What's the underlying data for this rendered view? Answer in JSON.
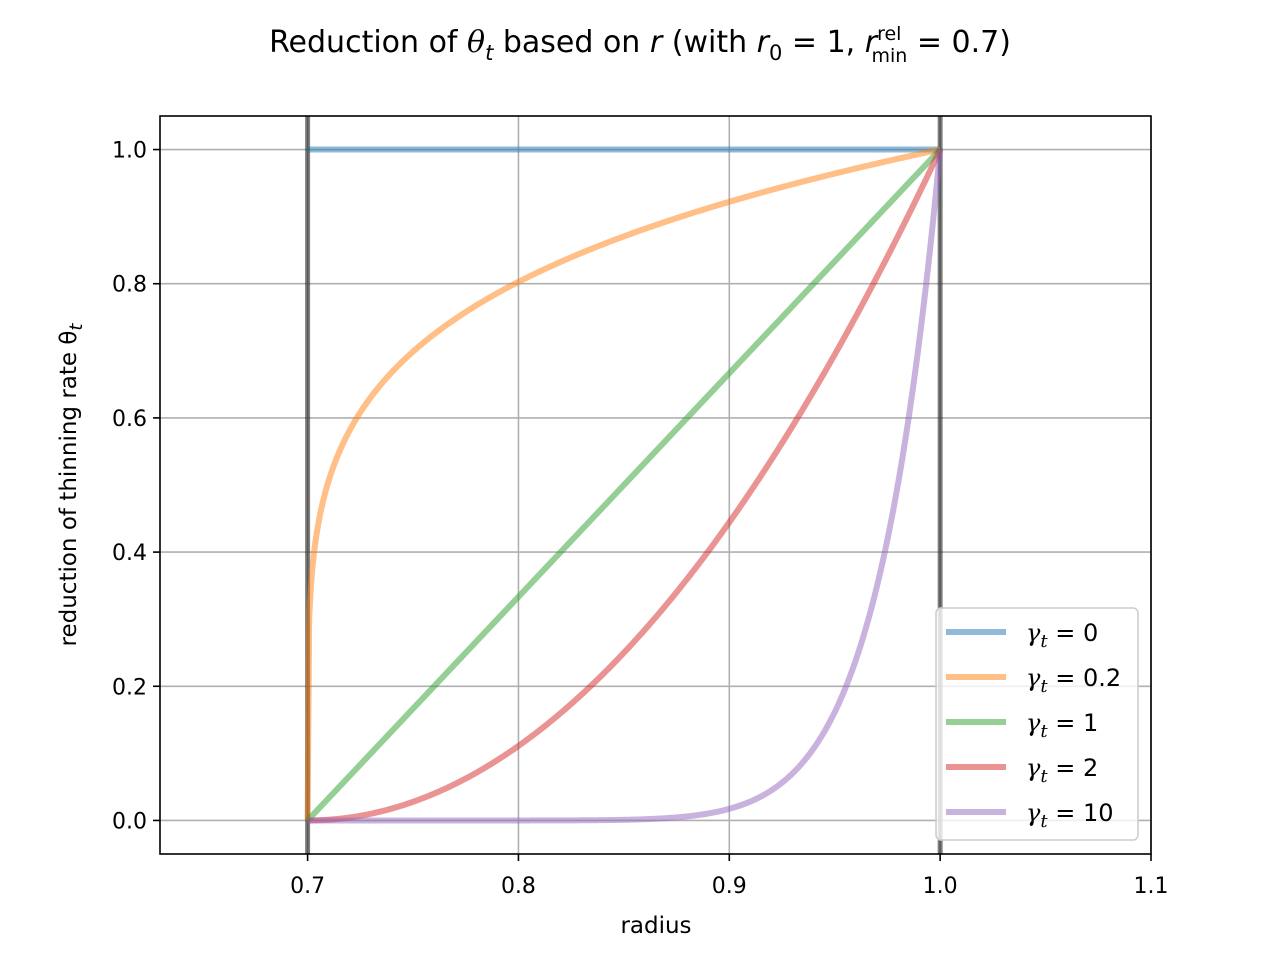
{
  "chart_data": {
    "type": "line",
    "title_parts": [
      "Reduction of ",
      "θ",
      "t",
      " based on ",
      "r",
      " (with ",
      "r",
      "0",
      " = 1, ",
      "r",
      "rel",
      "min",
      " = 0.7)"
    ],
    "xlabel": "radius",
    "ylabel": "reduction of thinning rate θ",
    "ylabel_sub": "t",
    "xlim": [
      0.63,
      1.1
    ],
    "ylim": [
      -0.05,
      1.05
    ],
    "xticks": [
      0.7,
      0.8,
      0.9,
      1.0,
      1.1
    ],
    "xtick_labels": [
      "0.7",
      "0.8",
      "0.9",
      "1.0",
      "1.1"
    ],
    "yticks": [
      0.0,
      0.2,
      0.4,
      0.6,
      0.8,
      1.0
    ],
    "ytick_labels": [
      "0.0",
      "0.2",
      "0.4",
      "0.6",
      "0.8",
      "1.0"
    ],
    "grid": true,
    "vlines": [
      0.7,
      1.0
    ],
    "r_min": 0.7,
    "r_max": 1.0,
    "legend_position": "lower right",
    "series": [
      {
        "name": "γt = 0",
        "greek": "γ",
        "sub": "t",
        "value_label": " = 0",
        "gamma": 0,
        "color": "#1f77b4"
      },
      {
        "name": "γt = 0.2",
        "greek": "γ",
        "sub": "t",
        "value_label": " = 0.2",
        "gamma": 0.2,
        "color": "#ff7f0e"
      },
      {
        "name": "γt = 1",
        "greek": "γ",
        "sub": "t",
        "value_label": " = 1",
        "gamma": 1,
        "color": "#2ca02c"
      },
      {
        "name": "γt = 2",
        "greek": "γ",
        "sub": "t",
        "value_label": " = 2",
        "gamma": 2,
        "color": "#d62728"
      },
      {
        "name": "γt = 10",
        "greek": "γ",
        "sub": "t",
        "value_label": " = 10",
        "gamma": 10,
        "color": "#9467bd"
      }
    ]
  }
}
